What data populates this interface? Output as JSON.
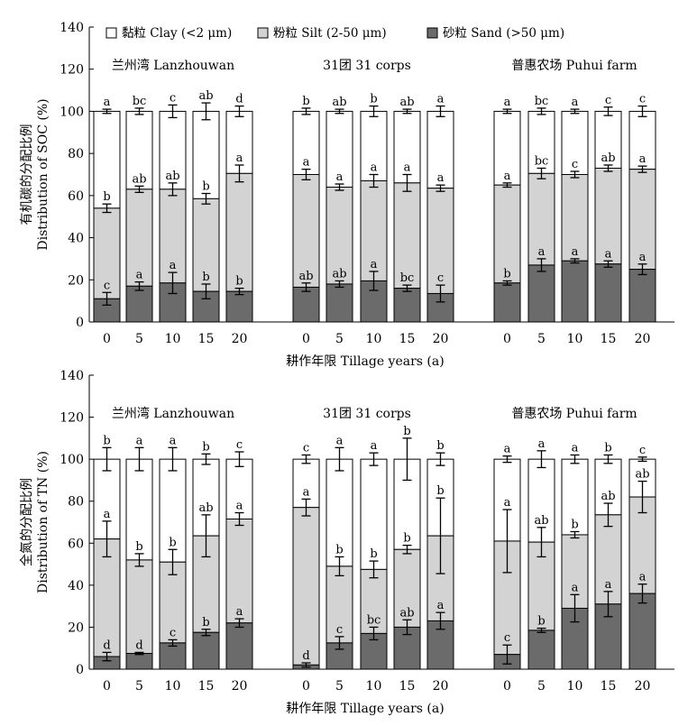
{
  "legend": [
    {
      "label": "黏粒 Clay (<2 μm)",
      "color": "#ffffff"
    },
    {
      "label": "粉粒 Silt (2-50 μm)",
      "color": "#d3d3d3"
    },
    {
      "label": "砂粒 Sand (>50 μm)",
      "color": "#6b6b6b"
    }
  ],
  "chart_data": [
    {
      "type": "bar",
      "stacked": true,
      "ylabel_cn": "有机碳的分配比例",
      "ylabel": "Distribution of SOC (%)",
      "xlabel": "耕作年限 Tillage years (a)",
      "ylim": [
        0,
        140
      ],
      "yticks": [
        "0",
        "20",
        "40",
        "60",
        "80",
        "100",
        "120",
        "140"
      ],
      "categories": [
        "0",
        "5",
        "10",
        "15",
        "20"
      ],
      "groups": [
        {
          "name": "兰州湾 Lanzhouwan",
          "sand": [
            11,
            17,
            18.5,
            14.5,
            14.5
          ],
          "sand_err": [
            3,
            2,
            5,
            3.5,
            1.5
          ],
          "sand_letters": [
            "c",
            "a",
            "a",
            "b",
            "b"
          ],
          "silt_top": [
            54,
            63,
            63,
            58.5,
            70.5
          ],
          "silt_err": [
            2,
            1.5,
            3,
            2.5,
            4
          ],
          "silt_letters": [
            "b",
            "ab",
            "ab",
            "b",
            "a"
          ],
          "total_err": [
            1,
            1.5,
            3,
            4,
            2.5
          ],
          "clay_letters": [
            "a",
            "bc",
            "c",
            "ab",
            "d"
          ]
        },
        {
          "name": "31团 31 corps",
          "sand": [
            16.5,
            18,
            19.5,
            16,
            13.5
          ],
          "sand_err": [
            2,
            1.5,
            4.5,
            1.5,
            4
          ],
          "sand_letters": [
            "ab",
            "ab",
            "a",
            "bc",
            "c"
          ],
          "silt_top": [
            70,
            64,
            67,
            66,
            63.5
          ],
          "silt_err": [
            2.5,
            1.5,
            3,
            4,
            1.5
          ],
          "silt_letters": [
            "a",
            "a",
            "a",
            "a",
            "a"
          ],
          "total_err": [
            1.5,
            1,
            2.5,
            1,
            2.5
          ],
          "clay_letters": [
            "b",
            "ab",
            "b",
            "ab",
            "a"
          ]
        },
        {
          "name": "普惠农场 Puhui  farm",
          "sand": [
            18.5,
            27,
            29,
            27.5,
            25
          ],
          "sand_err": [
            1,
            3,
            1,
            1.5,
            2.5
          ],
          "sand_letters": [
            "b",
            "a",
            "a",
            "a",
            "a"
          ],
          "silt_top": [
            65,
            70.5,
            70,
            73,
            72.5
          ],
          "silt_err": [
            1,
            2.5,
            1.5,
            1.5,
            1.5
          ],
          "silt_letters": [
            "a",
            "bc",
            "c",
            "ab",
            "a"
          ],
          "total_err": [
            1,
            1.5,
            1,
            2,
            2.5
          ],
          "clay_letters": [
            "a",
            "bc",
            "a",
            "c",
            "c"
          ]
        }
      ]
    },
    {
      "type": "bar",
      "stacked": true,
      "ylabel_cn": "全氮的分配比例",
      "ylabel": "Distribution of TN (%)",
      "xlabel": "耕作年限 Tillage years (a)",
      "ylim": [
        0,
        140
      ],
      "yticks": [
        "0",
        "20",
        "40",
        "60",
        "80",
        "100",
        "120",
        "140"
      ],
      "categories": [
        "0",
        "5",
        "10",
        "15",
        "20"
      ],
      "groups": [
        {
          "name": "兰州湾 Lanzhouwan",
          "sand": [
            6,
            7.5,
            12.5,
            17.5,
            22
          ],
          "sand_err": [
            2,
            0.5,
            1.5,
            1.5,
            2
          ],
          "sand_letters": [
            "d",
            "d",
            "c",
            "b",
            "a"
          ],
          "silt_top": [
            62,
            52,
            51,
            63.5,
            71.5
          ],
          "silt_err": [
            8.5,
            3,
            6,
            10,
            3
          ],
          "silt_letters": [
            "a",
            "b",
            "b",
            "ab",
            "a"
          ],
          "total_err": [
            5.5,
            5.5,
            5.5,
            2.5,
            3.5
          ],
          "clay_letters": [
            "b",
            "a",
            "a",
            "b",
            "c"
          ]
        },
        {
          "name": "31团 31 corps",
          "sand": [
            2,
            12.5,
            17,
            20,
            23
          ],
          "sand_err": [
            1,
            3,
            3,
            3.5,
            4
          ],
          "sand_letters": [
            "d",
            "c",
            "bc",
            "ab",
            "a"
          ],
          "silt_top": [
            77,
            49,
            47.5,
            57,
            63.5
          ],
          "silt_err": [
            4,
            4.5,
            4,
            2,
            18
          ],
          "silt_letters": [
            "a",
            "b",
            "b",
            "b",
            "b"
          ],
          "total_err": [
            2,
            5.5,
            3,
            10,
            3
          ],
          "clay_letters": [
            "c",
            "a",
            "a",
            "b",
            "b"
          ]
        },
        {
          "name": "普惠农场 Puhui  farm",
          "sand": [
            7,
            18.5,
            29,
            31,
            36
          ],
          "sand_err": [
            4.5,
            1,
            6.5,
            6,
            4.5
          ],
          "sand_letters": [
            "c",
            "b",
            "a",
            "a",
            "a"
          ],
          "silt_top": [
            61,
            60.5,
            64,
            73.5,
            82
          ],
          "silt_err": [
            15,
            7,
            1.5,
            5.5,
            7.5
          ],
          "silt_letters": [
            "a",
            "ab",
            "b",
            "ab",
            "ab"
          ],
          "total_err": [
            1.5,
            4,
            2,
            2,
            1
          ],
          "clay_letters": [
            "a",
            "a",
            "a",
            "b",
            "c"
          ]
        }
      ]
    }
  ]
}
